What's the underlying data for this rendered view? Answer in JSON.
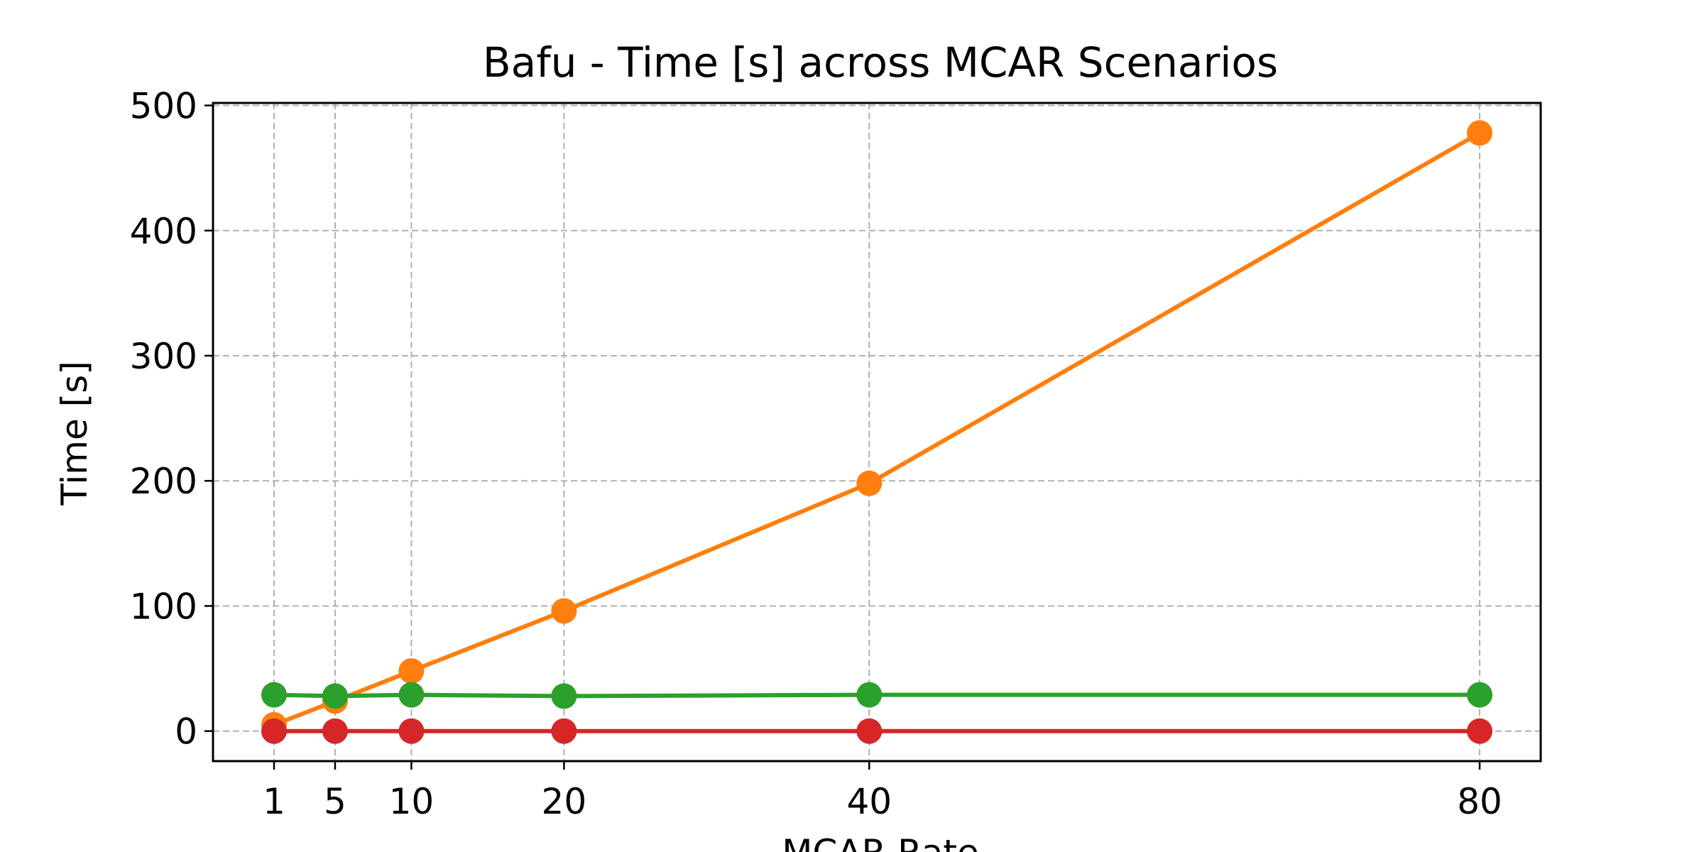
{
  "chart_data": {
    "type": "line",
    "title": "Bafu - Time [s] across MCAR Scenarios",
    "xlabel": "MCAR Rate",
    "ylabel": "Time [s]",
    "x": [
      1,
      5,
      10,
      20,
      40,
      80
    ],
    "xticks": [
      1,
      5,
      10,
      20,
      40,
      80
    ],
    "xlim": [
      -3,
      84
    ],
    "yticks": [
      0,
      100,
      200,
      300,
      400,
      500
    ],
    "ylim": [
      -24,
      502
    ],
    "grid": true,
    "series": [
      {
        "color": "#ff7f0e",
        "values": [
          5,
          24,
          48,
          96,
          198,
          478
        ]
      },
      {
        "color": "#2ca02c",
        "values": [
          29,
          28,
          29,
          28,
          29,
          29
        ]
      },
      {
        "color": "#d62728",
        "values": [
          0,
          0,
          0,
          0,
          0,
          0
        ]
      }
    ]
  }
}
